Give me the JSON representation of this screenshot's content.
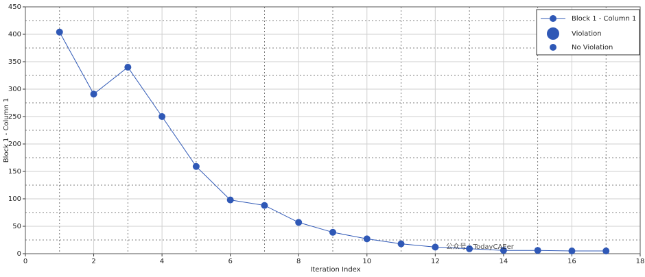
{
  "chart_data": {
    "type": "line",
    "x_label": "Iteration Index",
    "y_label": "Block 1 - Column 1",
    "x": [
      1,
      2,
      3,
      4,
      5,
      6,
      7,
      8,
      9,
      10,
      11,
      12,
      13,
      14,
      15,
      16,
      17
    ],
    "series": [
      {
        "name": "Block 1 - Column 1",
        "color": "#2f58b6",
        "values": [
          404,
          291,
          340,
          250,
          159,
          98,
          88,
          57,
          39,
          27,
          18,
          12,
          9,
          6,
          6,
          5,
          5
        ]
      }
    ],
    "legend_extra": [
      "Violation",
      "No Violation"
    ],
    "xlim": [
      0,
      18
    ],
    "xticks": [
      0,
      2,
      4,
      6,
      8,
      10,
      12,
      14,
      16,
      18
    ],
    "ylim": [
      0,
      450
    ],
    "yticks": [
      0,
      50,
      100,
      150,
      200,
      250,
      300,
      350,
      400,
      450
    ],
    "grid": true,
    "legend": "upper right",
    "watermark": "公众号 · TodayCAEer"
  }
}
